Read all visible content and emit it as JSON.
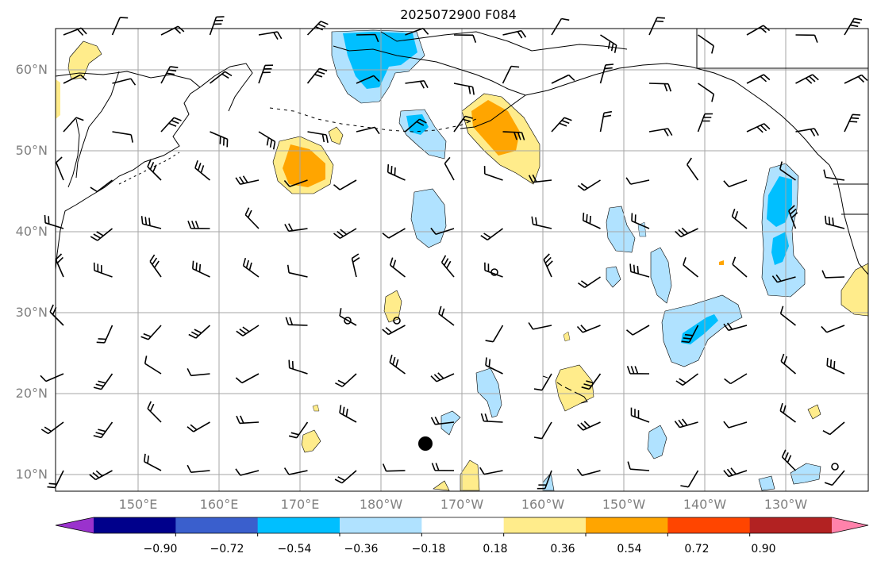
{
  "title": "2025072900 F084",
  "lat_labels": [
    "60°N",
    "50°N",
    "40°N",
    "30°N",
    "20°N",
    "10°N"
  ],
  "lon_labels": [
    "150°E",
    "160°E",
    "170°E",
    "180°W",
    "170°W",
    "160°W",
    "150°W",
    "140°W",
    "130°W"
  ],
  "colorbar": {
    "ticks": [
      "−0.90",
      "−0.72",
      "−0.54",
      "−0.36",
      "−0.18",
      "0.18",
      "0.36",
      "0.54",
      "0.72",
      "0.90"
    ],
    "colors": [
      "#9a32cd",
      "#00008b",
      "#3a5fcd",
      "#00bfff",
      "#b0e2ff",
      "#ffffff",
      "#ffec8b",
      "#ffa500",
      "#ff4500",
      "#b22222",
      "#ff82ab"
    ]
  },
  "shading_colors": {
    "light_blue": "#b0e2ff",
    "deep_sky_blue": "#00bfff",
    "light_yellow": "#ffec8b",
    "orange": "#ffa500"
  }
}
